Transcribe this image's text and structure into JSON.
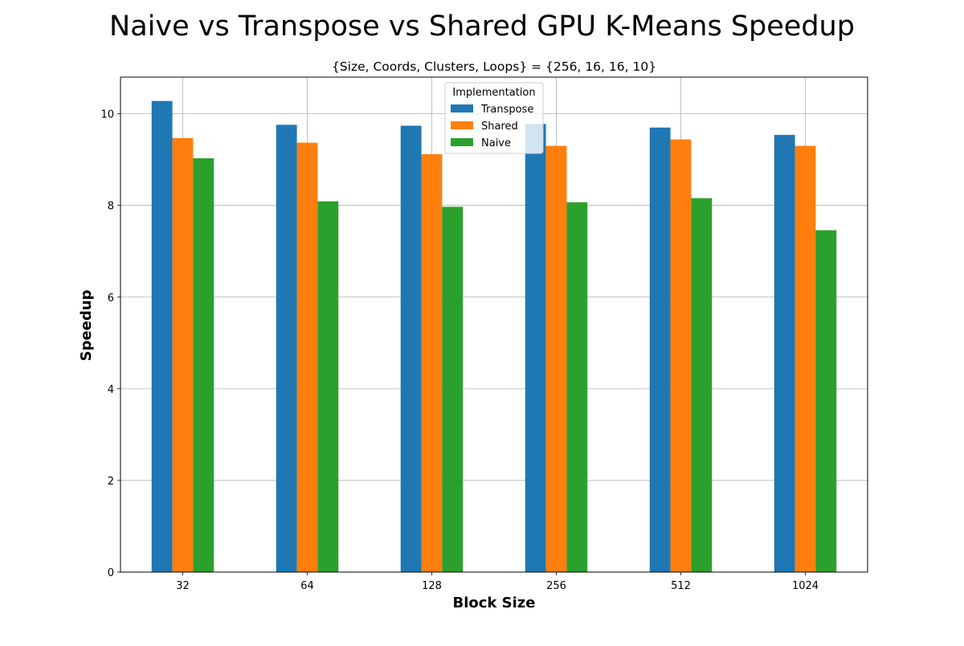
{
  "chart_data": {
    "type": "bar",
    "title": "Naive vs Transpose vs Shared GPU K-Means Speedup",
    "subtitle": "{Size, Coords, Clusters, Loops} = {256, 16, 16, 10}",
    "xlabel": "Block Size",
    "ylabel": "Speedup",
    "categories": [
      "32",
      "64",
      "128",
      "256",
      "512",
      "1024"
    ],
    "ylim": [
      0,
      10.8
    ],
    "yticks": [
      0,
      2,
      4,
      6,
      8,
      10
    ],
    "grid": true,
    "legend": {
      "title": "Implementation",
      "placement": "top-center"
    },
    "series": [
      {
        "name": "Transpose",
        "color": "#1f77b4",
        "values": [
          10.28,
          9.76,
          9.74,
          9.78,
          9.7,
          9.54
        ]
      },
      {
        "name": "Shared",
        "color": "#ff7f0e",
        "values": [
          9.47,
          9.37,
          9.12,
          9.3,
          9.44,
          9.3
        ]
      },
      {
        "name": "Naive",
        "color": "#2ca02c",
        "values": [
          9.03,
          8.09,
          7.97,
          8.07,
          8.16,
          7.46
        ]
      }
    ]
  }
}
